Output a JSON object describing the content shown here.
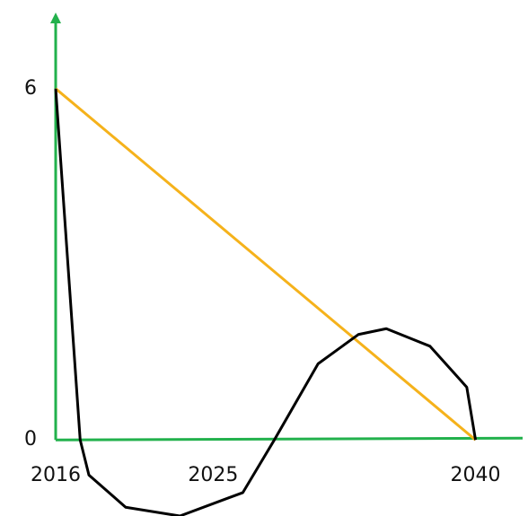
{
  "chart_data": {
    "type": "line",
    "xlim": [
      2016,
      2043
    ],
    "ylim": [
      -1.3,
      7.3
    ],
    "xticks": [
      2016,
      2025,
      2040
    ],
    "yticks": [
      0,
      6
    ],
    "axis_color": "#22b14c",
    "series": [
      {
        "color": "#f5b21b",
        "x": [
          2016,
          2040
        ],
        "values": [
          6,
          0
        ]
      },
      {
        "color": "#000000",
        "x": [
          2016,
          2017.4,
          2017.9,
          2020,
          2023.1,
          2026.7,
          2028.5,
          2031,
          2033.3,
          2034.9,
          2037.4,
          2039.5,
          2040
        ],
        "values": [
          6,
          0,
          -0.6,
          -1.15,
          -1.3,
          -0.9,
          0,
          1.3,
          1.8,
          1.9,
          1.6,
          0.9,
          0
        ]
      }
    ]
  }
}
